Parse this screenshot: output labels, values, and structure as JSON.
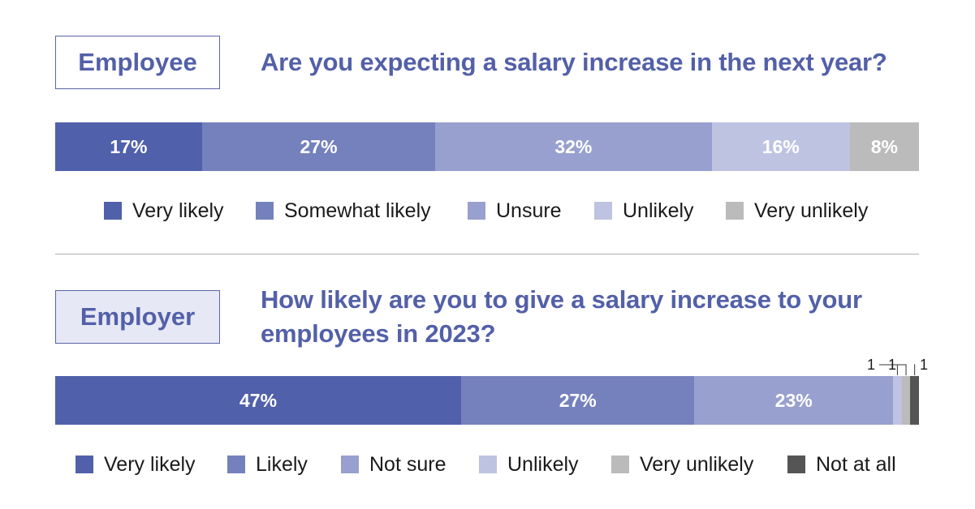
{
  "colors": {
    "accent": "#5360a8",
    "very_likely": "#5060aa",
    "likely": "#7581bd",
    "unsure": "#97a0ce",
    "unlikely": "#bec3e2",
    "very_unlikely": "#bbbbbb",
    "not_at_all": "#555555"
  },
  "chart_data": [
    {
      "type": "bar",
      "orientation": "horizontal-stacked",
      "tag": "Employee",
      "title": "Are you expecting a salary increase in the next year?",
      "xlim": [
        0,
        100
      ],
      "grid": false,
      "legend_position": "bottom",
      "series": [
        {
          "name": "Very likely",
          "value": 17,
          "label": "17%",
          "color": "#5060aa"
        },
        {
          "name": "Somewhat likely",
          "value": 27,
          "label": "27%",
          "color": "#7581bd"
        },
        {
          "name": "Unsure",
          "value": 32,
          "label": "32%",
          "color": "#97a0ce"
        },
        {
          "name": "Unlikely",
          "value": 16,
          "label": "16%",
          "color": "#bec3e2"
        },
        {
          "name": "Very unlikely",
          "value": 8,
          "label": "8%",
          "color": "#bbbbbb"
        }
      ]
    },
    {
      "type": "bar",
      "orientation": "horizontal-stacked",
      "tag": "Employer",
      "title": "How likely are you to give a salary increase to your employees in 2023?",
      "xlim": [
        0,
        100
      ],
      "grid": false,
      "legend_position": "bottom",
      "series": [
        {
          "name": "Very likely",
          "value": 47,
          "label": "47%",
          "color": "#5060aa"
        },
        {
          "name": "Likely",
          "value": 27,
          "label": "27%",
          "color": "#7581bd"
        },
        {
          "name": "Not sure",
          "value": 23,
          "label": "23%",
          "color": "#97a0ce"
        },
        {
          "name": "Unlikely",
          "value": 1,
          "label": "1",
          "color": "#bec3e2"
        },
        {
          "name": "Very unlikely",
          "value": 1,
          "label": "1",
          "color": "#bbbbbb"
        },
        {
          "name": "Not at all",
          "value": 1,
          "label": "1",
          "color": "#555555"
        }
      ]
    }
  ]
}
